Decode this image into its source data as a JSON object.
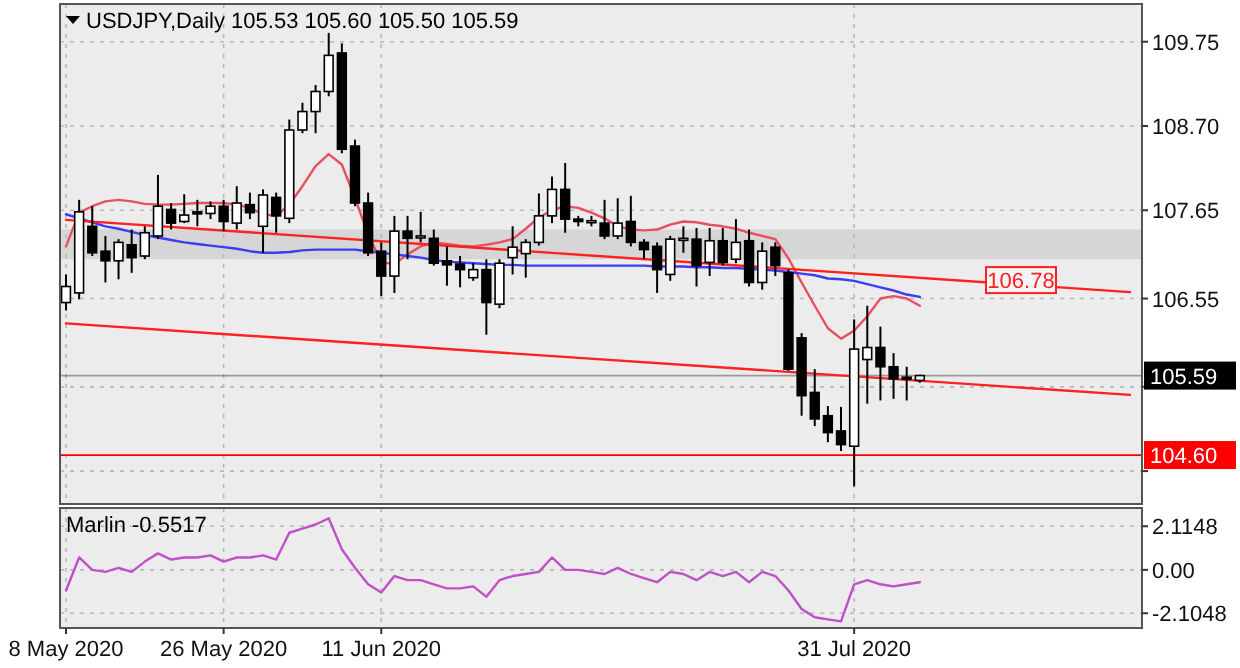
{
  "chart_data": [
    {
      "type": "candlestick",
      "title": "USDJPY,Daily 105.53 105.60 105.50 105.59",
      "categories": [
        null,
        null,
        null,
        null,
        null,
        null,
        null,
        null,
        null,
        null,
        null,
        null,
        null,
        null,
        null,
        null,
        null,
        null,
        null,
        null,
        null,
        null,
        null,
        null,
        null,
        null,
        null,
        null,
        null,
        null,
        null,
        null,
        null,
        null,
        null,
        null,
        null,
        null,
        null,
        null,
        null,
        null,
        null,
        null,
        null,
        null,
        null,
        null,
        null,
        null,
        null,
        null,
        null,
        null,
        null,
        null,
        null,
        null,
        null,
        null,
        null,
        null,
        null,
        null,
        null,
        null,
        null,
        null,
        null,
        null,
        null,
        null,
        null,
        null,
        null,
        null,
        null,
        null,
        null,
        null,
        null,
        null
      ],
      "ohlc": [
        [
          106.5,
          106.85,
          106.4,
          106.7
        ],
        [
          106.62,
          107.78,
          106.54,
          107.63
        ],
        [
          107.45,
          107.7,
          107.08,
          107.12
        ],
        [
          107.14,
          107.33,
          106.75,
          107.02
        ],
        [
          107.02,
          107.29,
          106.79,
          107.25
        ],
        [
          107.22,
          107.41,
          106.87,
          107.06
        ],
        [
          107.08,
          107.45,
          107.04,
          107.37
        ],
        [
          107.33,
          108.09,
          107.29,
          107.7
        ],
        [
          107.66,
          107.74,
          107.41,
          107.49
        ],
        [
          107.51,
          107.85,
          107.49,
          107.59
        ],
        [
          107.63,
          107.78,
          107.45,
          107.62
        ],
        [
          107.61,
          107.76,
          107.54,
          107.7
        ],
        [
          107.7,
          107.78,
          107.39,
          107.51
        ],
        [
          107.49,
          107.95,
          107.41,
          107.74
        ],
        [
          107.72,
          107.87,
          107.54,
          107.62
        ],
        [
          107.45,
          107.91,
          107.12,
          107.84
        ],
        [
          107.81,
          107.87,
          107.37,
          107.58
        ],
        [
          107.55,
          108.78,
          107.49,
          108.65
        ],
        [
          108.65,
          108.99,
          108.61,
          108.88
        ],
        [
          108.88,
          109.21,
          108.61,
          109.13
        ],
        [
          109.13,
          109.86,
          109.07,
          109.58
        ],
        [
          109.61,
          109.73,
          108.36,
          108.41
        ],
        [
          108.45,
          108.53,
          107.7,
          107.74
        ],
        [
          107.74,
          107.87,
          107.08,
          107.12
        ],
        [
          107.14,
          107.25,
          106.58,
          106.83
        ],
        [
          106.83,
          107.58,
          106.62,
          107.39
        ],
        [
          107.39,
          107.58,
          107.04,
          107.3
        ],
        [
          107.33,
          107.63,
          107.25,
          107.33
        ],
        [
          107.3,
          107.41,
          106.96,
          106.99
        ],
        [
          107.02,
          107.2,
          106.71,
          106.97
        ],
        [
          106.98,
          107.08,
          106.69,
          106.91
        ],
        [
          106.81,
          106.99,
          106.77,
          106.91
        ],
        [
          106.91,
          107.04,
          106.1,
          106.5
        ],
        [
          106.48,
          107.04,
          106.43,
          106.99
        ],
        [
          107.06,
          107.45,
          106.85,
          107.19
        ],
        [
          107.11,
          107.29,
          106.81,
          107.25
        ],
        [
          107.25,
          107.86,
          107.21,
          107.58
        ],
        [
          107.58,
          108.07,
          107.49,
          107.91
        ],
        [
          107.91,
          108.24,
          107.37,
          107.54
        ],
        [
          107.54,
          107.58,
          107.45,
          107.51
        ],
        [
          107.52,
          107.58,
          107.45,
          107.52
        ],
        [
          107.49,
          107.78,
          107.29,
          107.33
        ],
        [
          107.33,
          107.8,
          107.29,
          107.49
        ],
        [
          107.51,
          107.83,
          107.2,
          107.25
        ],
        [
          107.25,
          107.29,
          107.04,
          107.16
        ],
        [
          107.2,
          107.25,
          106.62,
          106.91
        ],
        [
          106.85,
          107.33,
          106.77,
          107.29
        ],
        [
          107.29,
          107.45,
          107.12,
          107.3
        ],
        [
          107.29,
          107.43,
          106.7,
          106.96
        ],
        [
          107.0,
          107.43,
          106.83,
          107.27
        ],
        [
          107.27,
          107.43,
          106.96,
          107.0
        ],
        [
          107.04,
          107.54,
          106.99,
          107.25
        ],
        [
          107.27,
          107.41,
          106.7,
          106.75
        ],
        [
          106.75,
          107.25,
          106.66,
          107.14
        ],
        [
          107.19,
          107.25,
          106.83,
          106.96
        ],
        [
          106.87,
          106.91,
          105.65,
          105.67
        ],
        [
          106.06,
          106.12,
          105.09,
          105.34
        ],
        [
          105.38,
          105.67,
          104.96,
          105.05
        ],
        [
          105.09,
          105.21,
          104.76,
          104.88
        ],
        [
          104.9,
          105.2,
          104.65,
          104.73
        ],
        [
          104.71,
          106.29,
          104.21,
          105.92
        ],
        [
          105.79,
          106.46,
          105.24,
          105.94
        ],
        [
          105.94,
          106.2,
          105.28,
          105.7
        ],
        [
          105.7,
          105.87,
          105.3,
          105.55
        ],
        [
          105.57,
          105.7,
          105.28,
          105.55
        ],
        [
          105.53,
          105.6,
          105.5,
          105.59
        ],
        null,
        null,
        null,
        null,
        null,
        null,
        null,
        null,
        null,
        null,
        null,
        null,
        null,
        null,
        null,
        null
      ],
      "series": [
        {
          "type": "line",
          "color": "#e8505f",
          "values": [
            107.2,
            107.62,
            107.7,
            107.76,
            107.78,
            107.76,
            107.73,
            107.72,
            107.72,
            107.73,
            107.74,
            107.74,
            107.74,
            107.72,
            107.68,
            107.6,
            107.58,
            107.72,
            107.95,
            108.2,
            108.35,
            108.22,
            107.8,
            107.35,
            107.0,
            106.98,
            107.1,
            107.2,
            107.25,
            107.23,
            107.21,
            107.2,
            107.22,
            107.25,
            107.29,
            107.42,
            107.56,
            107.65,
            107.7,
            107.68,
            107.62,
            107.55,
            107.45,
            107.41,
            107.4,
            107.41,
            107.47,
            107.51,
            107.5,
            107.47,
            107.45,
            107.42,
            107.37,
            107.33,
            107.29,
            107.05,
            106.75,
            106.46,
            106.18,
            106.05,
            106.15,
            106.33,
            106.55,
            106.58,
            106.55,
            106.46,
            null,
            null,
            null,
            null,
            null,
            null,
            null,
            null,
            null,
            null,
            null,
            null,
            null,
            null,
            null,
            null
          ]
        },
        {
          "type": "line",
          "color": "#3c3cf0",
          "values": [
            107.6,
            107.55,
            107.5,
            107.45,
            107.42,
            107.38,
            107.34,
            107.31,
            107.28,
            107.25,
            107.23,
            107.21,
            107.19,
            107.17,
            107.14,
            107.12,
            107.12,
            107.13,
            107.15,
            107.16,
            107.16,
            107.16,
            107.16,
            107.14,
            107.12,
            107.1,
            107.08,
            107.06,
            107.03,
            107.01,
            107.0,
            106.99,
            106.98,
            106.97,
            106.97,
            106.96,
            106.96,
            106.96,
            106.96,
            106.96,
            106.96,
            106.96,
            106.96,
            106.96,
            106.96,
            106.95,
            106.95,
            106.95,
            106.94,
            106.94,
            106.93,
            106.93,
            106.92,
            106.91,
            106.9,
            106.88,
            106.86,
            106.84,
            106.8,
            106.79,
            106.77,
            106.73,
            106.69,
            106.65,
            106.6,
            106.57,
            null,
            null,
            null,
            null,
            null,
            null,
            null,
            null,
            null,
            null,
            null,
            null,
            null,
            null,
            null,
            null
          ]
        },
        {
          "type": "line",
          "color": "#ff2020",
          "values": [
            107.53,
            null,
            null,
            null,
            null,
            null,
            null,
            null,
            null,
            null,
            null,
            null,
            null,
            null,
            null,
            null,
            null,
            null,
            null,
            null,
            null,
            null,
            null,
            null,
            null,
            null,
            null,
            null,
            null,
            null,
            null,
            null,
            null,
            null,
            null,
            null,
            null,
            null,
            null,
            null,
            null,
            null,
            null,
            null,
            null,
            null,
            null,
            null,
            null,
            null,
            null,
            null,
            null,
            null,
            null,
            null,
            null,
            null,
            null,
            null,
            null,
            null,
            null,
            null,
            null,
            null,
            null,
            null,
            null,
            null,
            null,
            null,
            null,
            null,
            null,
            null,
            null,
            null,
            null,
            null,
            null,
            106.63
          ]
        },
        {
          "type": "line",
          "color": "#ff2020",
          "values": [
            106.24,
            null,
            null,
            null,
            null,
            null,
            null,
            null,
            null,
            null,
            null,
            null,
            null,
            null,
            null,
            null,
            null,
            null,
            null,
            null,
            null,
            null,
            null,
            null,
            null,
            null,
            null,
            null,
            null,
            null,
            null,
            null,
            null,
            null,
            null,
            null,
            null,
            null,
            null,
            null,
            null,
            null,
            null,
            null,
            null,
            null,
            null,
            null,
            null,
            null,
            null,
            null,
            null,
            null,
            null,
            null,
            null,
            null,
            null,
            null,
            null,
            null,
            null,
            null,
            null,
            null,
            null,
            null,
            null,
            null,
            null,
            null,
            null,
            null,
            null,
            null,
            null,
            null,
            null,
            null,
            null,
            105.35
          ]
        }
      ],
      "ylim": [
        103.99,
        110.22
      ],
      "yticks": [
        109.75,
        {
          "value": 108.7,
          "label": "108.70"
        },
        107.65,
        106.55,
        {
          "value": 105.45,
          "label": null
        },
        {
          "value": 104.4,
          "label": null
        }
      ],
      "grid": true,
      "tick_labels": "y",
      "bands": [
        {
          "axis": "y",
          "from": 107.04,
          "to": 107.41,
          "color": "#d6d6d6"
        }
      ],
      "ref_lines": [
        {
          "axis": "y",
          "value": 104.6,
          "label": "104.60",
          "color": "#ff0000"
        },
        {
          "axis": "y",
          "value": 105.59,
          "label": "105.59",
          "color": "#000000"
        }
      ],
      "annotations": [
        {
          "text": "106.78",
          "y": 106.78
        }
      ]
    },
    {
      "type": "line",
      "title": "Marlin -0.5517",
      "categories": [
        "8 May 2020",
        null,
        null,
        null,
        null,
        null,
        null,
        null,
        null,
        null,
        null,
        null,
        "26 May 2020",
        null,
        null,
        null,
        null,
        null,
        null,
        null,
        null,
        null,
        null,
        null,
        "11 Jun 2020",
        null,
        null,
        null,
        null,
        null,
        null,
        null,
        null,
        null,
        null,
        null,
        null,
        null,
        null,
        null,
        null,
        null,
        null,
        null,
        null,
        null,
        null,
        null,
        null,
        null,
        null,
        null,
        null,
        null,
        null,
        null,
        null,
        null,
        null,
        null,
        "31 Jul 2020",
        null,
        null,
        null,
        null,
        null,
        null,
        null,
        null,
        null,
        null,
        null,
        null,
        null,
        null,
        null,
        null,
        null,
        null,
        null,
        null,
        null
      ],
      "series": [
        {
          "color": "#c050c8",
          "values": [
            -1.0,
            0.6,
            0.0,
            -0.1,
            0.1,
            -0.1,
            0.4,
            0.8,
            0.5,
            0.6,
            0.6,
            0.7,
            0.4,
            0.6,
            0.6,
            0.7,
            0.5,
            1.8,
            2.0,
            2.2,
            2.5,
            1.0,
            0.1,
            -0.7,
            -1.1,
            -0.3,
            -0.5,
            -0.5,
            -0.7,
            -0.9,
            -0.9,
            -0.8,
            -1.3,
            -0.5,
            -0.3,
            -0.2,
            -0.1,
            0.6,
            0.0,
            0.0,
            -0.1,
            -0.2,
            0.1,
            -0.2,
            -0.4,
            -0.6,
            -0.1,
            -0.2,
            -0.5,
            -0.1,
            -0.3,
            -0.1,
            -0.6,
            -0.1,
            -0.3,
            -1.0,
            -1.9,
            -2.3,
            -2.4,
            -2.5,
            -0.7,
            -0.5,
            -0.7,
            -0.8,
            -0.7,
            -0.6,
            null,
            null,
            null,
            null,
            null,
            null,
            null,
            null,
            null,
            null,
            null,
            null,
            null,
            null,
            null,
            null
          ]
        }
      ],
      "ylim": [
        -2.82,
        3.0
      ],
      "yticks": [
        2.1148,
        {
          "value": 0,
          "label": "0.00"
        },
        -2.1048
      ],
      "grid": true
    }
  ]
}
